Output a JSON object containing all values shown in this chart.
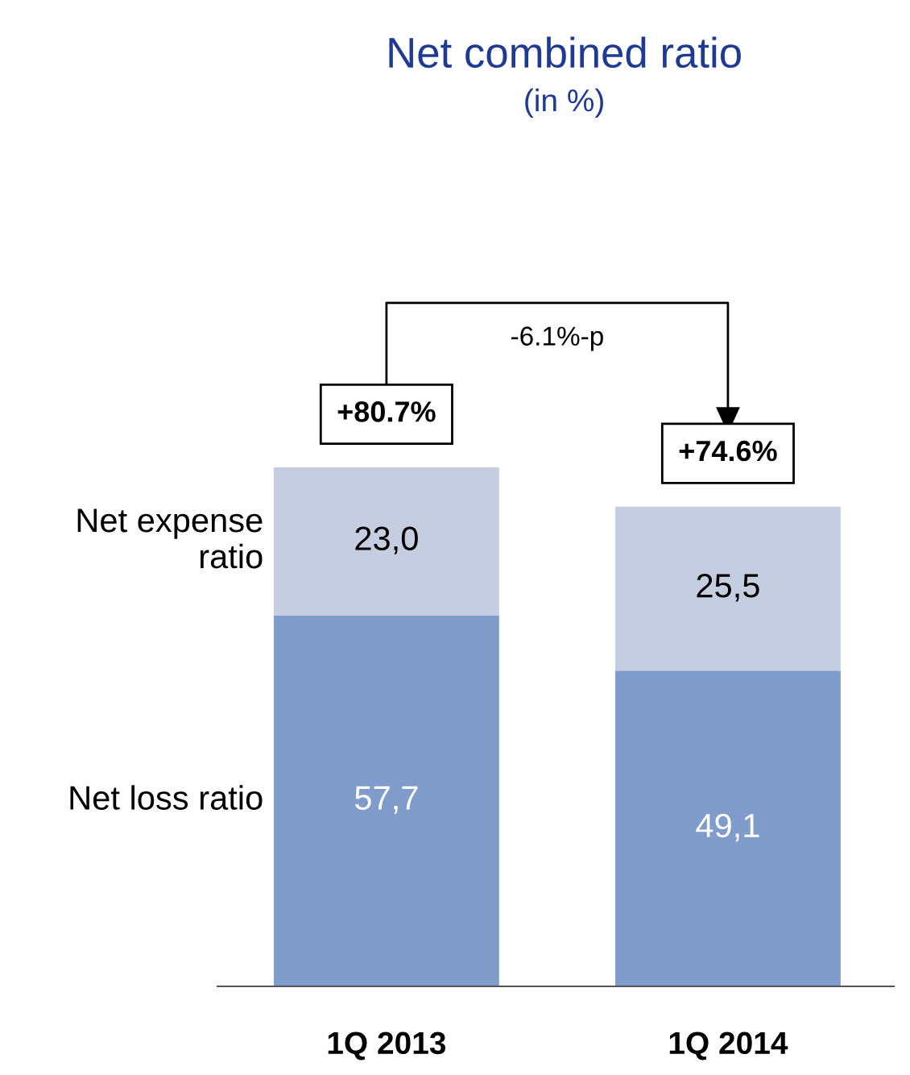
{
  "chart_data": {
    "type": "bar",
    "title": "Net combined ratio",
    "subtitle": "(in %)",
    "categories": [
      "1Q 2013",
      "1Q 2014"
    ],
    "stacked": true,
    "series": [
      {
        "name": "Net loss ratio",
        "color": "#7f9ccb",
        "values": [
          57.7,
          49.1
        ],
        "value_labels": [
          "57,7",
          "49,1"
        ]
      },
      {
        "name": "Net expense ratio",
        "color": "#c5cde0",
        "values": [
          23.0,
          25.5
        ],
        "value_labels": [
          "23,0",
          "25,5"
        ]
      }
    ],
    "totals": [
      "+80.7%",
      "+74.6%"
    ],
    "annotations": [
      "-6.1%-p"
    ],
    "legend": false,
    "grid": false
  }
}
